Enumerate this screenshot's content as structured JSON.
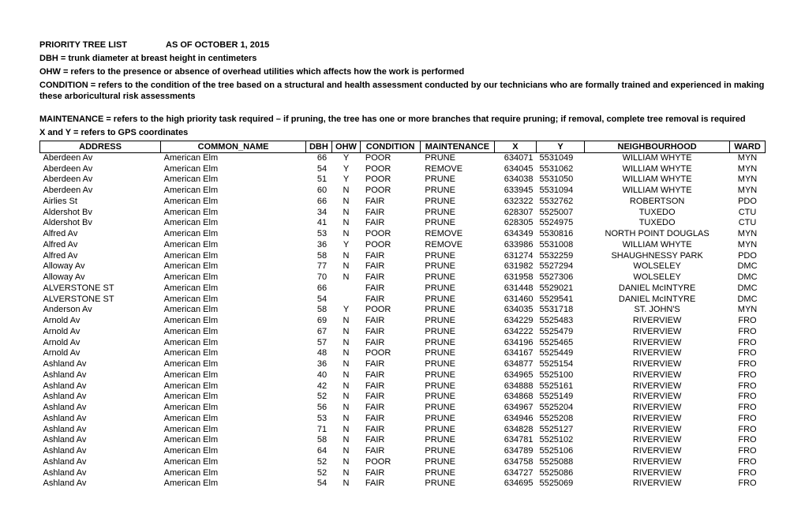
{
  "header": {
    "title_label": "PRIORITY TREE LIST",
    "title_date": "AS OF OCTOBER 1, 2015",
    "lines": [
      "DBH = trunk diameter at breast height in centimeters",
      "OHW = refers to the presence or absence of overhead utilities which affects how the work is performed",
      "CONDITION = refers to the condition of the tree based on a structural and health assessment conducted by our technicians who are formally trained and experienced in making these arboricultural risk assessments"
    ],
    "lines2": [
      "MAINTENANCE = refers to the high priority task required – if pruning, the tree has one or more branches that require pruning; if removal, complete tree removal is required",
      "X and Y = refers to GPS coordinates"
    ]
  },
  "columns": [
    "ADDRESS",
    "COMMON_NAME",
    "DBH",
    "OHW",
    "CONDITION",
    "MAINTENANCE",
    "X",
    "Y",
    "NEIGHBOURHOOD",
    "WARD"
  ],
  "rows": [
    [
      "Aberdeen Av",
      "American Elm",
      "66",
      "Y",
      "POOR",
      "PRUNE",
      "634071",
      "5531049",
      "WILLIAM WHYTE",
      "MYN"
    ],
    [
      "Aberdeen Av",
      "American Elm",
      "54",
      "Y",
      "POOR",
      "REMOVE",
      "634045",
      "5531062",
      "WILLIAM WHYTE",
      "MYN"
    ],
    [
      "Aberdeen Av",
      "American Elm",
      "51",
      "Y",
      "POOR",
      "PRUNE",
      "634038",
      "5531050",
      "WILLIAM WHYTE",
      "MYN"
    ],
    [
      "Aberdeen Av",
      "American Elm",
      "60",
      "N",
      "POOR",
      "PRUNE",
      "633945",
      "5531094",
      "WILLIAM WHYTE",
      "MYN"
    ],
    [
      "Airlies St",
      "American Elm",
      "66",
      "N",
      "FAIR",
      "PRUNE",
      "632322",
      "5532762",
      "ROBERTSON",
      "PDO"
    ],
    [
      "Aldershot Bv",
      "American Elm",
      "34",
      "N",
      "FAIR",
      "PRUNE",
      "628307",
      "5525007",
      "TUXEDO",
      "CTU"
    ],
    [
      "Aldershot Bv",
      "American Elm",
      "41",
      "N",
      "FAIR",
      "PRUNE",
      "628305",
      "5524975",
      "TUXEDO",
      "CTU"
    ],
    [
      "Alfred Av",
      "American Elm",
      "53",
      "N",
      "POOR",
      "REMOVE",
      "634349",
      "5530816",
      "NORTH POINT DOUGLAS",
      "MYN"
    ],
    [
      "Alfred Av",
      "American Elm",
      "36",
      "Y",
      "POOR",
      "REMOVE",
      "633986",
      "5531008",
      "WILLIAM WHYTE",
      "MYN"
    ],
    [
      "Alfred Av",
      "American Elm",
      "58",
      "N",
      "FAIR",
      "PRUNE",
      "631274",
      "5532259",
      "SHAUGHNESSY PARK",
      "PDO"
    ],
    [
      "Alloway Av",
      "American Elm",
      "77",
      "N",
      "FAIR",
      "PRUNE",
      "631982",
      "5527294",
      "WOLSELEY",
      "DMC"
    ],
    [
      "Alloway Av",
      "American Elm",
      "70",
      "N",
      "FAIR",
      "PRUNE",
      "631958",
      "5527306",
      "WOLSELEY",
      "DMC"
    ],
    [
      "ALVERSTONE ST",
      "American Elm",
      "66",
      "",
      "FAIR",
      "PRUNE",
      "631448",
      "5529021",
      "DANIEL McINTYRE",
      "DMC"
    ],
    [
      "ALVERSTONE ST",
      "American Elm",
      "54",
      "",
      "FAIR",
      "PRUNE",
      "631460",
      "5529541",
      "DANIEL McINTYRE",
      "DMC"
    ],
    [
      "Anderson Av",
      "American Elm",
      "58",
      "Y",
      "POOR",
      "PRUNE",
      "634035",
      "5531718",
      "ST. JOHN'S",
      "MYN"
    ],
    [
      "Arnold Av",
      "American Elm",
      "69",
      "N",
      "FAIR",
      "PRUNE",
      "634229",
      "5525483",
      "RIVERVIEW",
      "FRO"
    ],
    [
      "Arnold Av",
      "American Elm",
      "67",
      "N",
      "FAIR",
      "PRUNE",
      "634222",
      "5525479",
      "RIVERVIEW",
      "FRO"
    ],
    [
      "Arnold Av",
      "American Elm",
      "57",
      "N",
      "FAIR",
      "PRUNE",
      "634196",
      "5525465",
      "RIVERVIEW",
      "FRO"
    ],
    [
      "Arnold Av",
      "American Elm",
      "48",
      "N",
      "POOR",
      "PRUNE",
      "634167",
      "5525449",
      "RIVERVIEW",
      "FRO"
    ],
    [
      "Ashland Av",
      "American Elm",
      "36",
      "N",
      "FAIR",
      "PRUNE",
      "634877",
      "5525154",
      "RIVERVIEW",
      "FRO"
    ],
    [
      "Ashland Av",
      "American Elm",
      "40",
      "N",
      "FAIR",
      "PRUNE",
      "634965",
      "5525100",
      "RIVERVIEW",
      "FRO"
    ],
    [
      "Ashland Av",
      "American Elm",
      "42",
      "N",
      "FAIR",
      "PRUNE",
      "634888",
      "5525161",
      "RIVERVIEW",
      "FRO"
    ],
    [
      "Ashland Av",
      "American Elm",
      "52",
      "N",
      "FAIR",
      "PRUNE",
      "634868",
      "5525149",
      "RIVERVIEW",
      "FRO"
    ],
    [
      "Ashland Av",
      "American Elm",
      "56",
      "N",
      "FAIR",
      "PRUNE",
      "634967",
      "5525204",
      "RIVERVIEW",
      "FRO"
    ],
    [
      "Ashland Av",
      "American Elm",
      "53",
      "N",
      "FAIR",
      "PRUNE",
      "634946",
      "5525208",
      "RIVERVIEW",
      "FRO"
    ],
    [
      "Ashland Av",
      "American Elm",
      "71",
      "N",
      "FAIR",
      "PRUNE",
      "634828",
      "5525127",
      "RIVERVIEW",
      "FRO"
    ],
    [
      "Ashland Av",
      "American Elm",
      "58",
      "N",
      "FAIR",
      "PRUNE",
      "634781",
      "5525102",
      "RIVERVIEW",
      "FRO"
    ],
    [
      "Ashland Av",
      "American Elm",
      "64",
      "N",
      "FAIR",
      "PRUNE",
      "634789",
      "5525106",
      "RIVERVIEW",
      "FRO"
    ],
    [
      "Ashland Av",
      "American Elm",
      "52",
      "N",
      "POOR",
      "PRUNE",
      "634758",
      "5525088",
      "RIVERVIEW",
      "FRO"
    ],
    [
      "Ashland Av",
      "American Elm",
      "52",
      "N",
      "FAIR",
      "PRUNE",
      "634727",
      "5525086",
      "RIVERVIEW",
      "FRO"
    ],
    [
      "Ashland Av",
      "American Elm",
      "54",
      "N",
      "FAIR",
      "PRUNE",
      "634695",
      "5525069",
      "RIVERVIEW",
      "FRO"
    ]
  ]
}
